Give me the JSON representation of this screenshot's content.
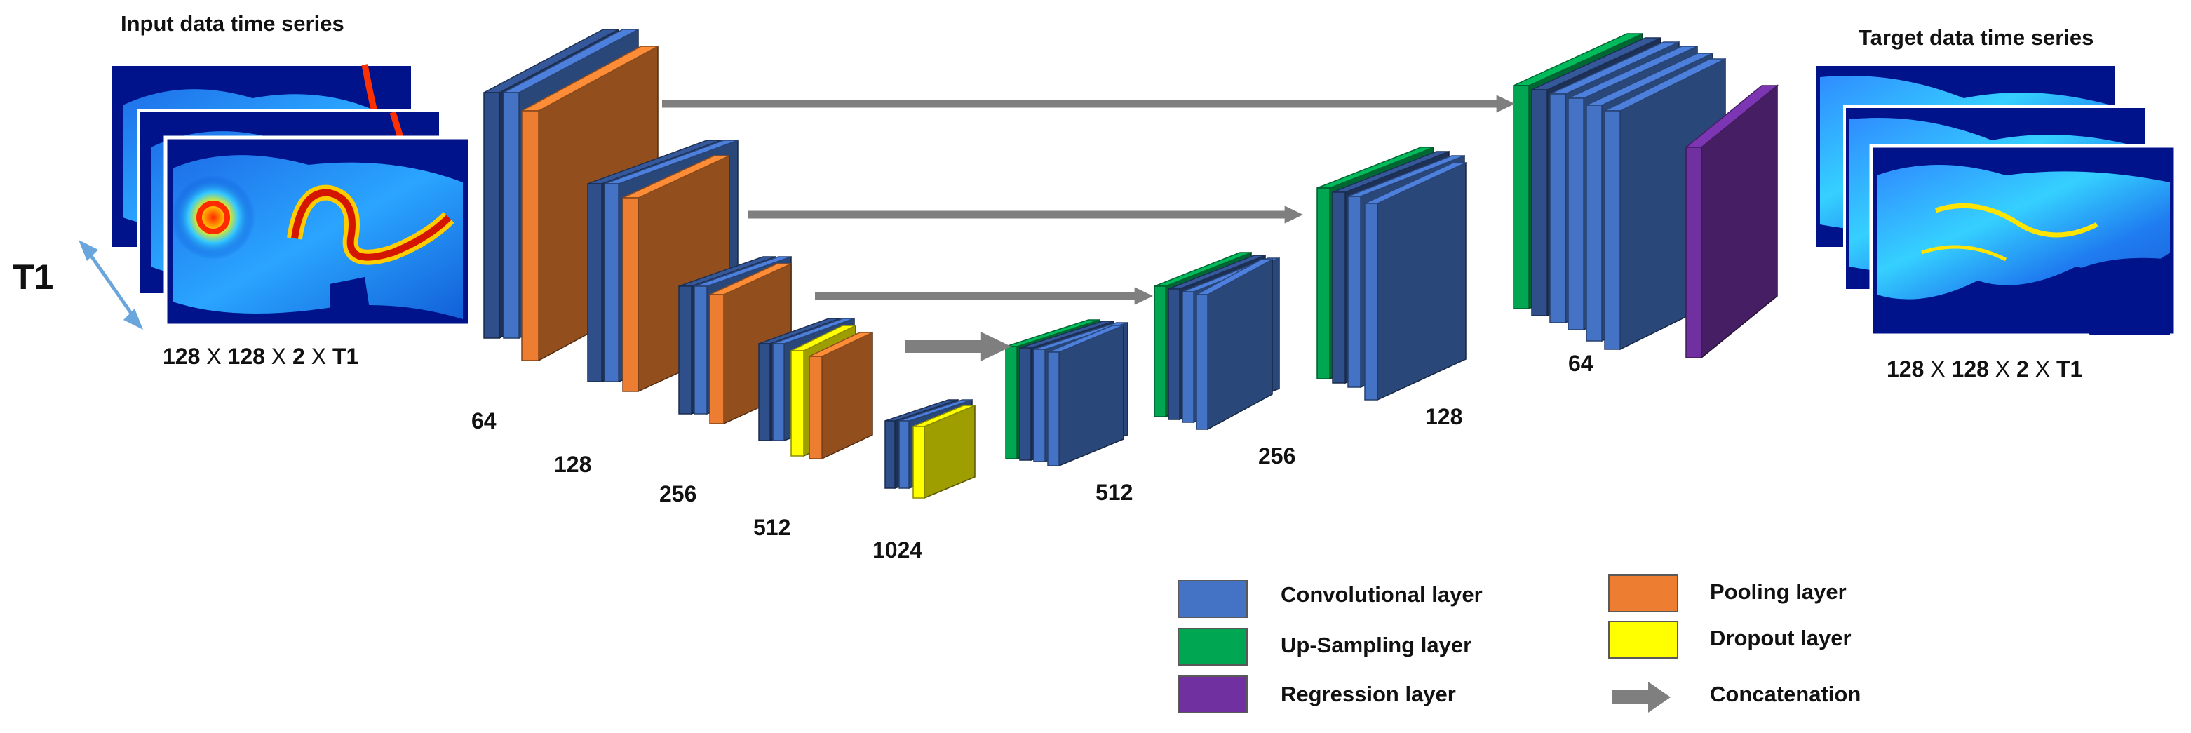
{
  "colors": {
    "convolutional": "#4472C4",
    "convolutional_dark": "#2F4F8A",
    "pooling": "#ED7D31",
    "upsampling": "#00A651",
    "dropout": "#FFFF00",
    "regression": "#7030A0",
    "arrow": "#7F7F7F"
  },
  "input": {
    "title": "Input data time series",
    "shape": {
      "a": "128",
      "x1": "X",
      "b": "128",
      "x2": "X",
      "c": "2",
      "x3": "X",
      "d": "T1"
    },
    "axis_label": "T1"
  },
  "target": {
    "title": "Target data time series",
    "shape": {
      "a": "128",
      "x1": "X",
      "b": "128",
      "x2": "X",
      "c": "2",
      "x3": "X",
      "d": "T1"
    }
  },
  "encoder_labels": [
    "64",
    "128",
    "256",
    "512",
    "1024"
  ],
  "decoder_labels": [
    "512",
    "256",
    "128",
    "64"
  ],
  "legend": [
    {
      "key": "convolutional",
      "label": "Convolutional layer",
      "icon": "blue-box"
    },
    {
      "key": "pooling",
      "label": "Pooling layer",
      "icon": "orange-box"
    },
    {
      "key": "upsampling",
      "label": "Up-Sampling layer",
      "icon": "green-box"
    },
    {
      "key": "dropout",
      "label": "Dropout layer",
      "icon": "yellow-box"
    },
    {
      "key": "regression",
      "label": "Regression layer",
      "icon": "purple-box"
    },
    {
      "key": "arrow",
      "label": "Concatenation",
      "icon": "arrow-icon"
    }
  ]
}
